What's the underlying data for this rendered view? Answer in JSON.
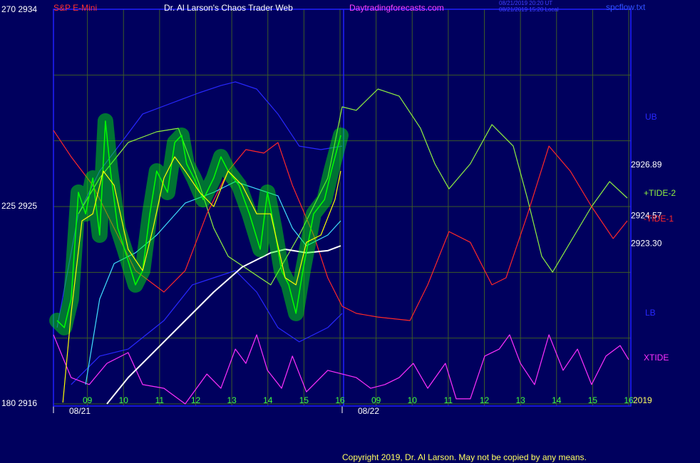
{
  "chart_data": {
    "type": "line",
    "title": "Dr. Al Larson's Chaos Trader Web",
    "symbol": "S&P E-Mini",
    "website": "Daytradingforecasts.com",
    "timestamps": [
      "08/21/2019 20:20 UT",
      "08/21/2019 15:20 Local"
    ],
    "file": "spcflow.txt",
    "copyright": "Copyright 2019, Dr. Al Larson. May not be copied by any means.",
    "year_label": "2019",
    "xlim": [
      0,
      16
    ],
    "ylim": [
      2916,
      2934
    ],
    "yticks": [
      {
        "value": 2916,
        "label": "180  2916"
      },
      {
        "value": 2925,
        "label": "225  2925"
      },
      {
        "value": 2934,
        "label": "270  2934"
      }
    ],
    "ygrid": [
      2919,
      2922,
      2928,
      2931
    ],
    "xticks": [
      {
        "value": 1,
        "label": "09"
      },
      {
        "value": 2,
        "label": "10"
      },
      {
        "value": 3,
        "label": "11"
      },
      {
        "value": 4,
        "label": "12"
      },
      {
        "value": 5,
        "label": "13"
      },
      {
        "value": 6,
        "label": "14"
      },
      {
        "value": 7,
        "label": "15"
      },
      {
        "value": 8,
        "label": "16"
      },
      {
        "value": 9,
        "label": "09"
      },
      {
        "value": 10,
        "label": "10"
      },
      {
        "value": 11,
        "label": "11"
      },
      {
        "value": 12,
        "label": "12"
      },
      {
        "value": 13,
        "label": "13"
      },
      {
        "value": 14,
        "label": "14"
      },
      {
        "value": 15,
        "label": "15"
      },
      {
        "value": 16,
        "label": "16"
      }
    ],
    "xdates": [
      {
        "value": 0,
        "label": "08/21"
      },
      {
        "value": 8,
        "label": "08/22"
      }
    ],
    "price_markers": [
      {
        "value": 2926.89,
        "label": "2926.89"
      },
      {
        "value": 2924.57,
        "label": "2924.57"
      },
      {
        "value": 2923.3,
        "label": "2923.30"
      }
    ],
    "series": [
      {
        "name": "UB",
        "color": "#2828ff",
        "x": [
          0.16,
          0.75,
          1.34,
          1.94,
          2.53,
          3.32,
          4.11,
          4.7,
          5.1,
          5.69,
          6.28,
          6.87,
          7.47,
          8.06
        ],
        "values": [
          2919.48,
          2924.67,
          2926.62,
          2927.92,
          2929.22,
          2929.71,
          2930.2,
          2930.52,
          2930.69,
          2930.36,
          2929.22,
          2927.76,
          2927.6,
          2927.76
        ]
      },
      {
        "name": "LB",
        "color": "#2828ff",
        "x": [
          0.55,
          1.34,
          2.13,
          3.12,
          3.91,
          4.5,
          5.1,
          5.69,
          6.28,
          6.87,
          7.66,
          8.06
        ],
        "values": [
          2916.88,
          2918.18,
          2918.5,
          2919.8,
          2921.43,
          2921.75,
          2922.08,
          2921.1,
          2919.48,
          2918.83,
          2919.48,
          2920.13
        ]
      },
      {
        "name": "+TIDE-2",
        "color": "#90f040",
        "x": [
          0.75,
          1.34,
          2.13,
          2.92,
          3.52,
          4.11,
          4.5,
          4.9,
          5.49,
          6.08,
          6.87,
          7.66,
          8.06,
          8.45,
          9.05,
          9.64,
          10.23,
          10.63,
          11.02,
          11.61,
          12.21,
          12.8,
          13.2,
          13.59,
          13.89,
          14.38,
          14.97,
          15.47,
          15.96
        ],
        "values": [
          2924.67,
          2926.3,
          2927.92,
          2928.41,
          2928.57,
          2925.97,
          2924.02,
          2922.73,
          2922.08,
          2921.43,
          2923.7,
          2926.3,
          2929.55,
          2929.39,
          2930.36,
          2930.04,
          2928.57,
          2926.95,
          2925.81,
          2926.95,
          2928.74,
          2927.76,
          2925.32,
          2922.73,
          2922.01,
          2923.37,
          2925.0,
          2926.14,
          2925.39
        ]
      },
      {
        "name": "-TIDE-1",
        "color": "#ff2828",
        "x": [
          0.06,
          0.55,
          1.15,
          1.74,
          2.33,
          3.12,
          3.71,
          4.31,
          4.9,
          5.39,
          5.89,
          6.28,
          6.68,
          7.27,
          7.66,
          8.06,
          8.45,
          9.05,
          9.94,
          10.43,
          11.02,
          11.61,
          12.21,
          12.6,
          13.2,
          13.79,
          14.38,
          14.97,
          15.57,
          15.96
        ],
        "values": [
          2928.48,
          2927.27,
          2925.97,
          2924.02,
          2922.08,
          2921.1,
          2922.08,
          2924.67,
          2926.62,
          2927.6,
          2927.44,
          2927.92,
          2925.97,
          2923.7,
          2921.75,
          2920.45,
          2920.13,
          2919.96,
          2919.8,
          2921.43,
          2923.86,
          2923.37,
          2921.43,
          2921.75,
          2924.67,
          2927.76,
          2926.62,
          2925.0,
          2923.54,
          2924.35
        ]
      },
      {
        "name": "XTIDE",
        "color": "#ff30ff",
        "x": [
          0.06,
          0.55,
          1.05,
          1.54,
          2.13,
          2.53,
          3.12,
          3.71,
          4.31,
          4.7,
          5.1,
          5.39,
          5.69,
          5.99,
          6.38,
          6.68,
          7.07,
          7.66,
          8.06,
          8.45,
          8.85,
          9.24,
          9.64,
          10.03,
          10.43,
          10.92,
          11.22,
          11.61,
          12.01,
          12.41,
          12.7,
          13.0,
          13.39,
          13.79,
          14.18,
          14.58,
          14.97,
          15.37,
          15.76,
          16
        ],
        "values": [
          2919.15,
          2917.2,
          2916.88,
          2917.85,
          2918.34,
          2916.88,
          2916.71,
          2916.0,
          2917.36,
          2916.71,
          2918.5,
          2917.85,
          2919.15,
          2917.53,
          2916.71,
          2918.18,
          2916.55,
          2917.53,
          2917.36,
          2917.2,
          2916.71,
          2916.88,
          2917.2,
          2917.85,
          2916.71,
          2917.85,
          2916.23,
          2916.23,
          2918.18,
          2918.5,
          2919.15,
          2917.85,
          2916.88,
          2919.15,
          2917.53,
          2918.5,
          2916.88,
          2918.18,
          2918.66,
          2918.01
        ]
      },
      {
        "color": "#ffffff",
        "x": [
          1.54,
          2.13,
          2.92,
          3.71,
          4.5,
          5.29,
          6.08,
          6.48,
          7.07,
          7.66,
          8.02
        ],
        "values": [
          2916.0,
          2917.2,
          2918.5,
          2919.8,
          2921.1,
          2922.24,
          2922.89,
          2923.05,
          2922.89,
          2922.99,
          2923.21
        ]
      },
      {
        "color": "#40e0ff",
        "x": [
          0.95,
          1.34,
          1.74,
          2.33,
          2.92,
          3.71,
          4.5,
          5.1,
          5.69,
          6.28,
          6.68,
          7.07,
          7.66,
          8.02
        ],
        "values": [
          2916.88,
          2920.78,
          2922.4,
          2922.89,
          2923.7,
          2925.16,
          2925.65,
          2926.14,
          2925.81,
          2925.49,
          2924.02,
          2923.21,
          2923.7,
          2924.35
        ]
      },
      {
        "color": "#00ff00",
        "x": [
          0.16,
          0.36,
          0.55,
          0.75,
          0.95,
          1.15,
          1.34,
          1.5,
          1.64,
          1.84,
          2.03,
          2.33,
          2.53,
          2.73,
          2.92,
          3.22,
          3.42,
          3.61,
          3.75,
          3.95,
          4.21,
          4.5,
          4.7,
          4.9,
          5.2,
          5.49,
          5.79,
          5.99,
          6.18,
          6.38,
          6.58,
          6.78,
          6.97,
          7.27,
          7.57,
          7.76,
          8.02
        ],
        "values": [
          2919.8,
          2919.48,
          2920.78,
          2925.65,
          2924.67,
          2926.3,
          2923.7,
          2928.9,
          2926.62,
          2924.02,
          2923.05,
          2921.43,
          2922.08,
          2924.67,
          2926.62,
          2925.65,
          2927.92,
          2928.25,
          2926.95,
          2926.3,
          2925.32,
          2926.3,
          2927.27,
          2926.62,
          2925.97,
          2924.67,
          2923.05,
          2925.65,
          2924.02,
          2922.08,
          2921.43,
          2920.13,
          2922.08,
          2924.67,
          2925.32,
          2926.62,
          2928.25
        ]
      },
      {
        "color": "#ffff00",
        "x": [
          0.32,
          0.55,
          0.85,
          1.15,
          1.44,
          1.74,
          2.13,
          2.53,
          2.82,
          3.12,
          3.42,
          3.71,
          4.11,
          4.5,
          4.9,
          5.29,
          5.69,
          6.08,
          6.48,
          6.78,
          7.07,
          7.47,
          7.86,
          8.02
        ],
        "values": [
          2916.06,
          2920.13,
          2924.35,
          2924.67,
          2926.62,
          2925.97,
          2923.05,
          2922.08,
          2924.02,
          2926.3,
          2927.27,
          2926.62,
          2925.65,
          2925.0,
          2926.62,
          2925.97,
          2924.67,
          2924.67,
          2921.75,
          2921.43,
          2923.37,
          2923.7,
          2925.32,
          2926.62
        ]
      }
    ]
  }
}
